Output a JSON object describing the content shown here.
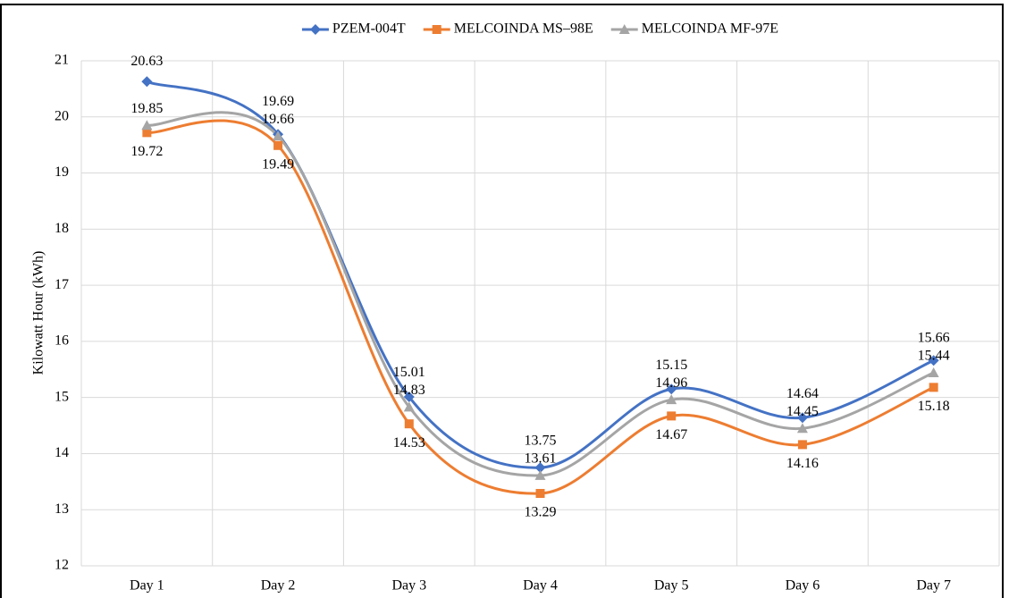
{
  "chart_data": {
    "type": "line",
    "y_label": "Kilowatt Hour (kWh)",
    "categories": [
      "Day 1",
      "Day 2",
      "Day 3",
      "Day 4",
      "Day 5",
      "Day 6",
      "Day 7"
    ],
    "series": [
      {
        "name": "PZEM-004T",
        "color": "#4472c4",
        "marker": "diamond",
        "values": [
          20.63,
          19.69,
          15.01,
          13.75,
          15.15,
          14.64,
          15.66
        ]
      },
      {
        "name": "MELCOINDA MS–98E",
        "color": "#ed7d31",
        "marker": "square",
        "values": [
          19.72,
          19.49,
          14.53,
          13.29,
          14.67,
          14.16,
          15.18
        ]
      },
      {
        "name": "MELCOINDA MF-97E",
        "color": "#a5a5a5",
        "marker": "triangle",
        "values": [
          19.85,
          19.66,
          14.83,
          13.61,
          14.96,
          14.45,
          15.44
        ]
      }
    ],
    "ylim": [
      12,
      21
    ],
    "yticks": [
      12,
      13,
      14,
      15,
      16,
      17,
      18,
      19,
      20,
      21
    ],
    "grid": true,
    "smooth": true,
    "legend": "top"
  }
}
